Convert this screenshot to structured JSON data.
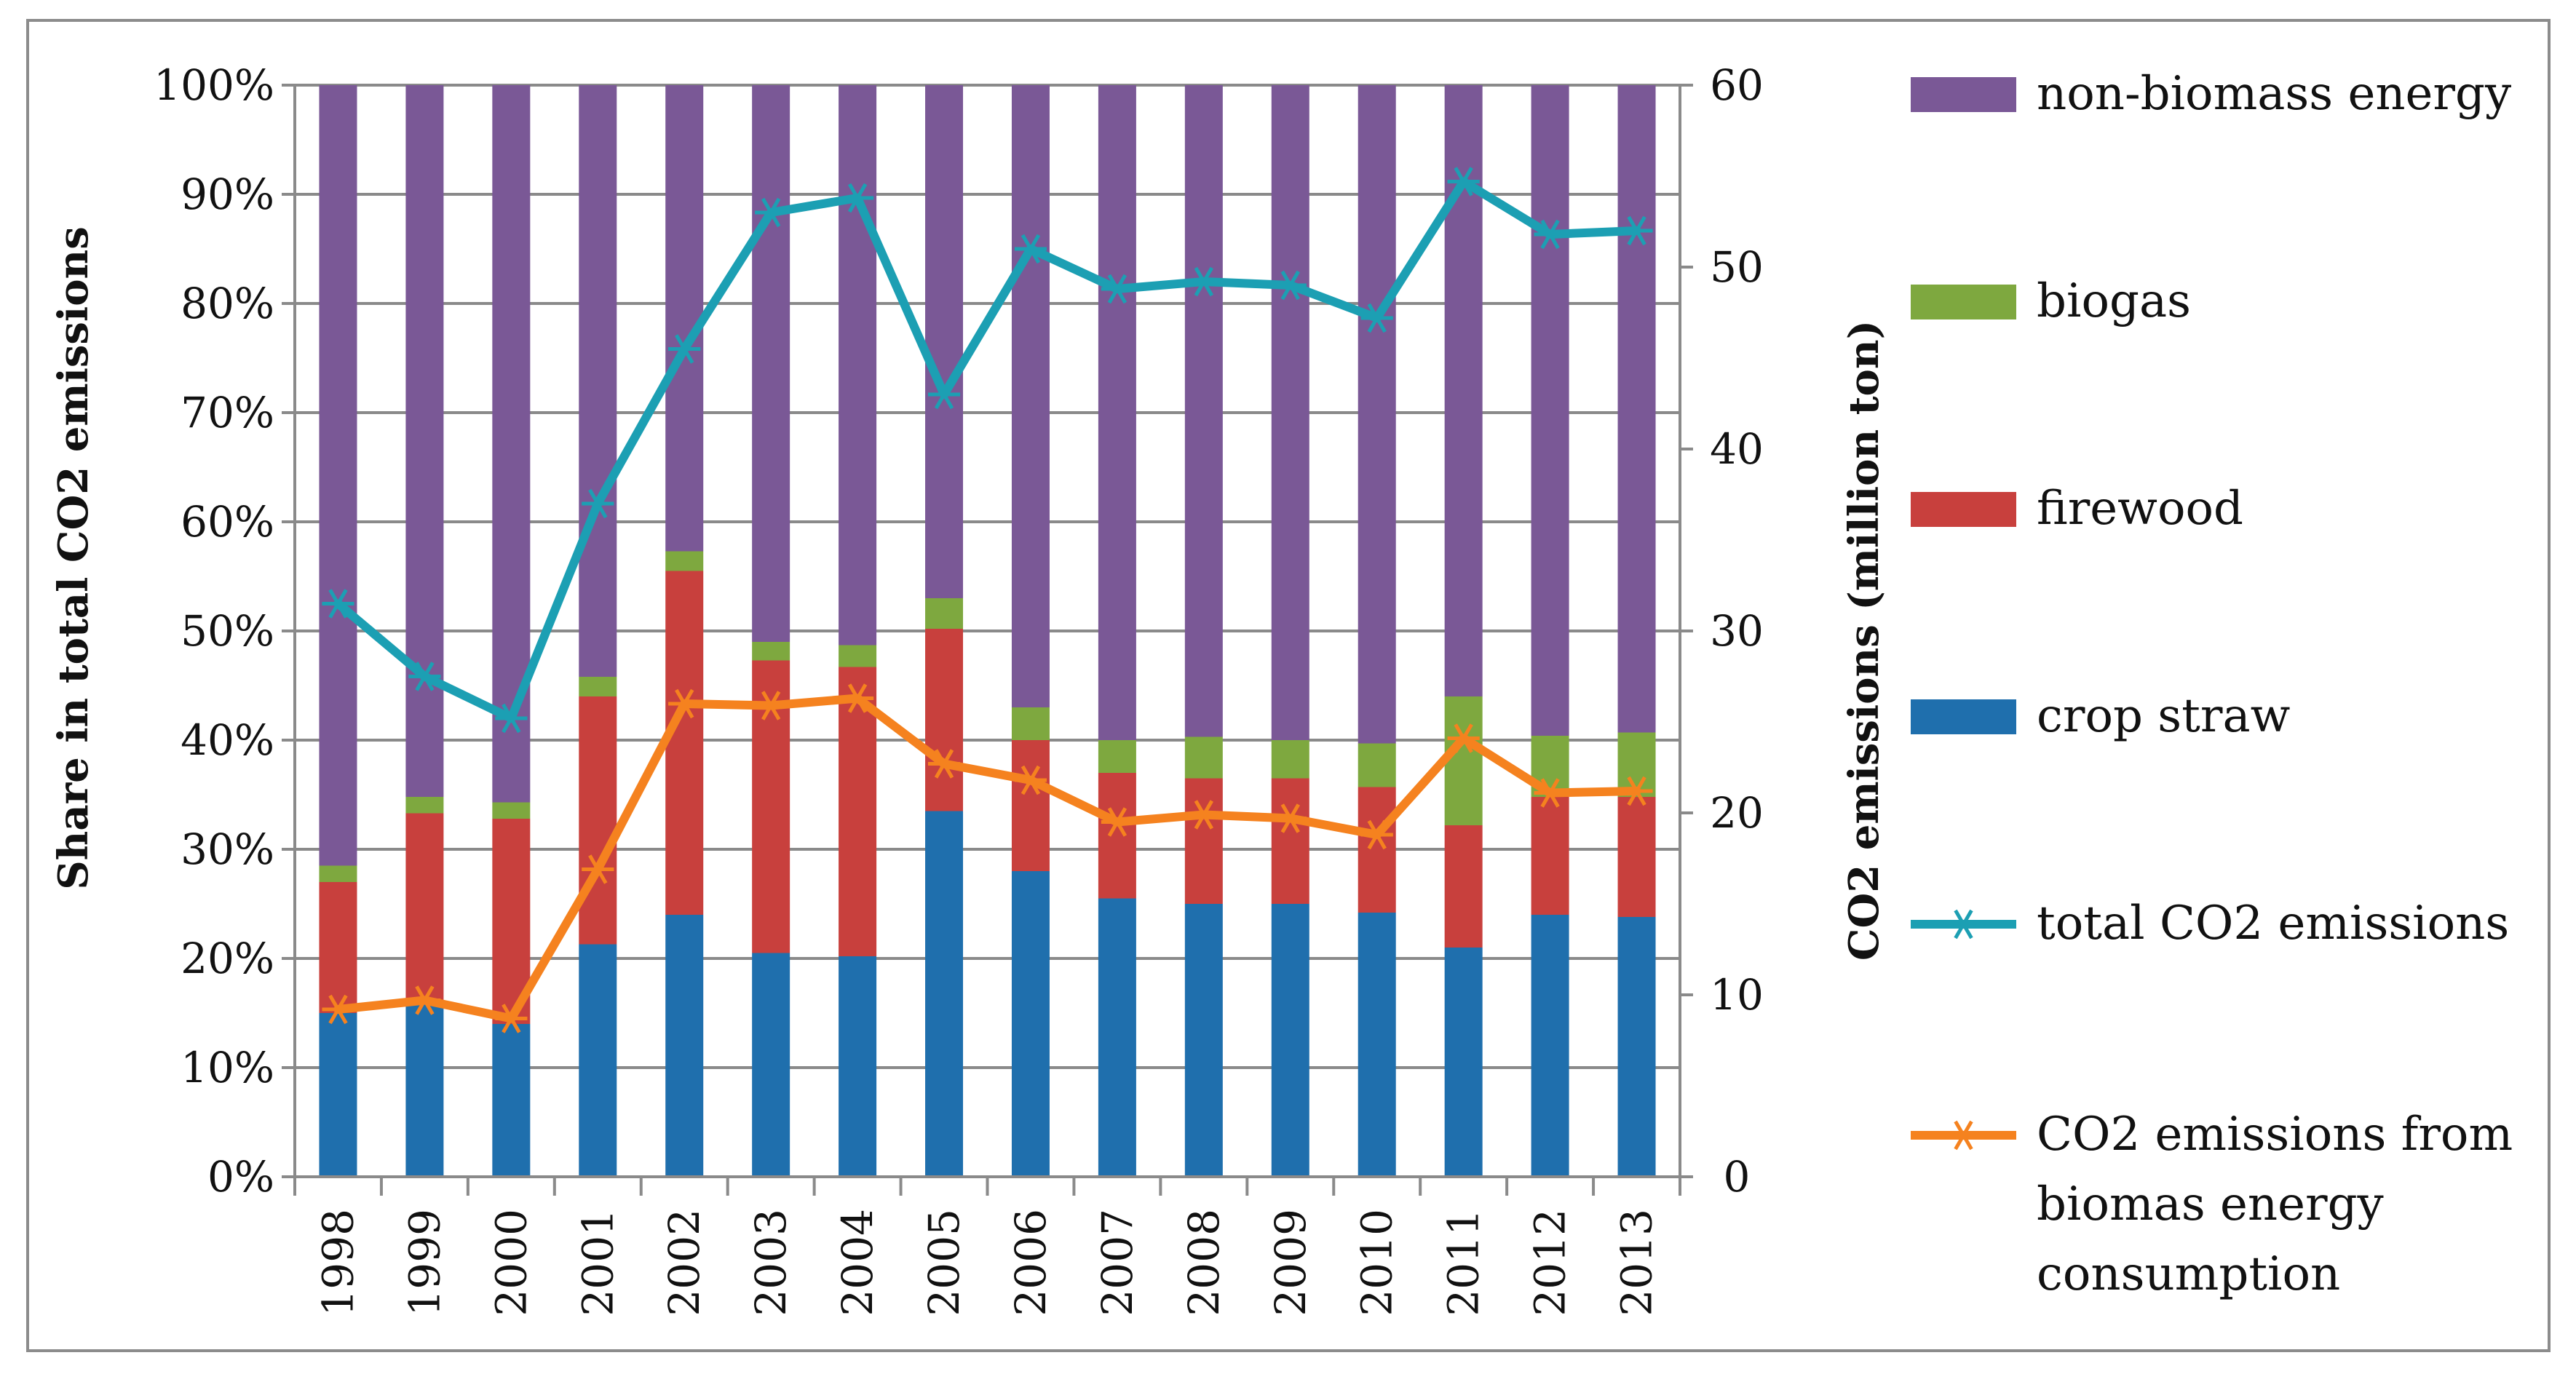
{
  "chart_data": {
    "type": "bar",
    "stacked": true,
    "categories": [
      "1998",
      "1999",
      "2000",
      "2001",
      "2002",
      "2003",
      "2004",
      "2005",
      "2006",
      "2007",
      "2008",
      "2009",
      "2010",
      "2011",
      "2012",
      "2013"
    ],
    "series": [
      {
        "name": "crop straw",
        "color": "#1f6fad",
        "kind": "bar",
        "axis": "left",
        "values": [
          15,
          16,
          14,
          21.3,
          24,
          20.5,
          20.2,
          33.5,
          28,
          25.5,
          25,
          25,
          24.2,
          21,
          24,
          23.8
        ]
      },
      {
        "name": "firewood",
        "color": "#c8403d",
        "kind": "bar",
        "axis": "left",
        "values": [
          12,
          17.3,
          18.8,
          22.7,
          31.5,
          26.8,
          26.5,
          16.7,
          12,
          11.5,
          11.5,
          11.5,
          11.5,
          11.2,
          10.8,
          11
        ]
      },
      {
        "name": "biogas",
        "color": "#7ea83f",
        "kind": "bar",
        "axis": "left",
        "values": [
          1.5,
          1.5,
          1.5,
          1.8,
          1.8,
          1.7,
          2.0,
          2.8,
          3.0,
          3.0,
          3.8,
          3.5,
          4.0,
          11.8,
          5.6,
          5.9
        ]
      },
      {
        "name": "non-biomass energy",
        "color": "#7a5896",
        "kind": "bar",
        "axis": "left",
        "values": [
          71.5,
          65.2,
          65.7,
          54.2,
          42.7,
          51,
          51.3,
          47,
          57,
          60,
          59.7,
          60,
          60.3,
          56,
          59.6,
          59.3
        ]
      },
      {
        "name": "total CO2 emissions",
        "color": "#1c9fb3",
        "kind": "line",
        "axis": "right",
        "values": [
          31.5,
          27.5,
          25.2,
          37,
          45.5,
          53,
          53.8,
          43,
          51,
          48.8,
          49.2,
          49,
          47.2,
          54.7,
          51.8,
          52
        ]
      },
      {
        "name": "CO2 emissions from biomas energy consumption",
        "color": "#f5821f",
        "kind": "line",
        "axis": "right",
        "values": [
          9.2,
          9.7,
          8.7,
          16.9,
          26,
          25.9,
          26.3,
          22.7,
          21.8,
          19.5,
          19.9,
          19.7,
          18.8,
          24.1,
          21.1,
          21.2
        ]
      }
    ],
    "legend_order": [
      "non-biomass energy",
      "biogas",
      "firewood",
      "crop straw",
      "total CO2 emissions",
      "CO2 emissions from biomas energy consumption"
    ],
    "legend_lines": {
      "non-biomass energy": [
        "non-biomass energy"
      ],
      "biogas": [
        "biogas"
      ],
      "firewood": [
        "firewood"
      ],
      "crop straw": [
        "crop straw"
      ],
      "total CO2 emissions": [
        "total CO2 emissions"
      ],
      "CO2 emissions from biomas energy consumption": [
        "CO2 emissions from",
        "biomas energy",
        "consumption"
      ]
    },
    "ylabel": "Share in total CO2 emissions",
    "y2label": "CO2 emissions (million ton)",
    "xlabel": "",
    "ylim": [
      0,
      100
    ],
    "y2lim": [
      0,
      60
    ],
    "yticks": [
      "0%",
      "10%",
      "20%",
      "30%",
      "40%",
      "50%",
      "60%",
      "70%",
      "80%",
      "90%",
      "100%"
    ],
    "y2ticks": [
      "0",
      "10",
      "20",
      "30",
      "40",
      "50",
      "60"
    ],
    "grid": true,
    "legend_position": "right"
  }
}
